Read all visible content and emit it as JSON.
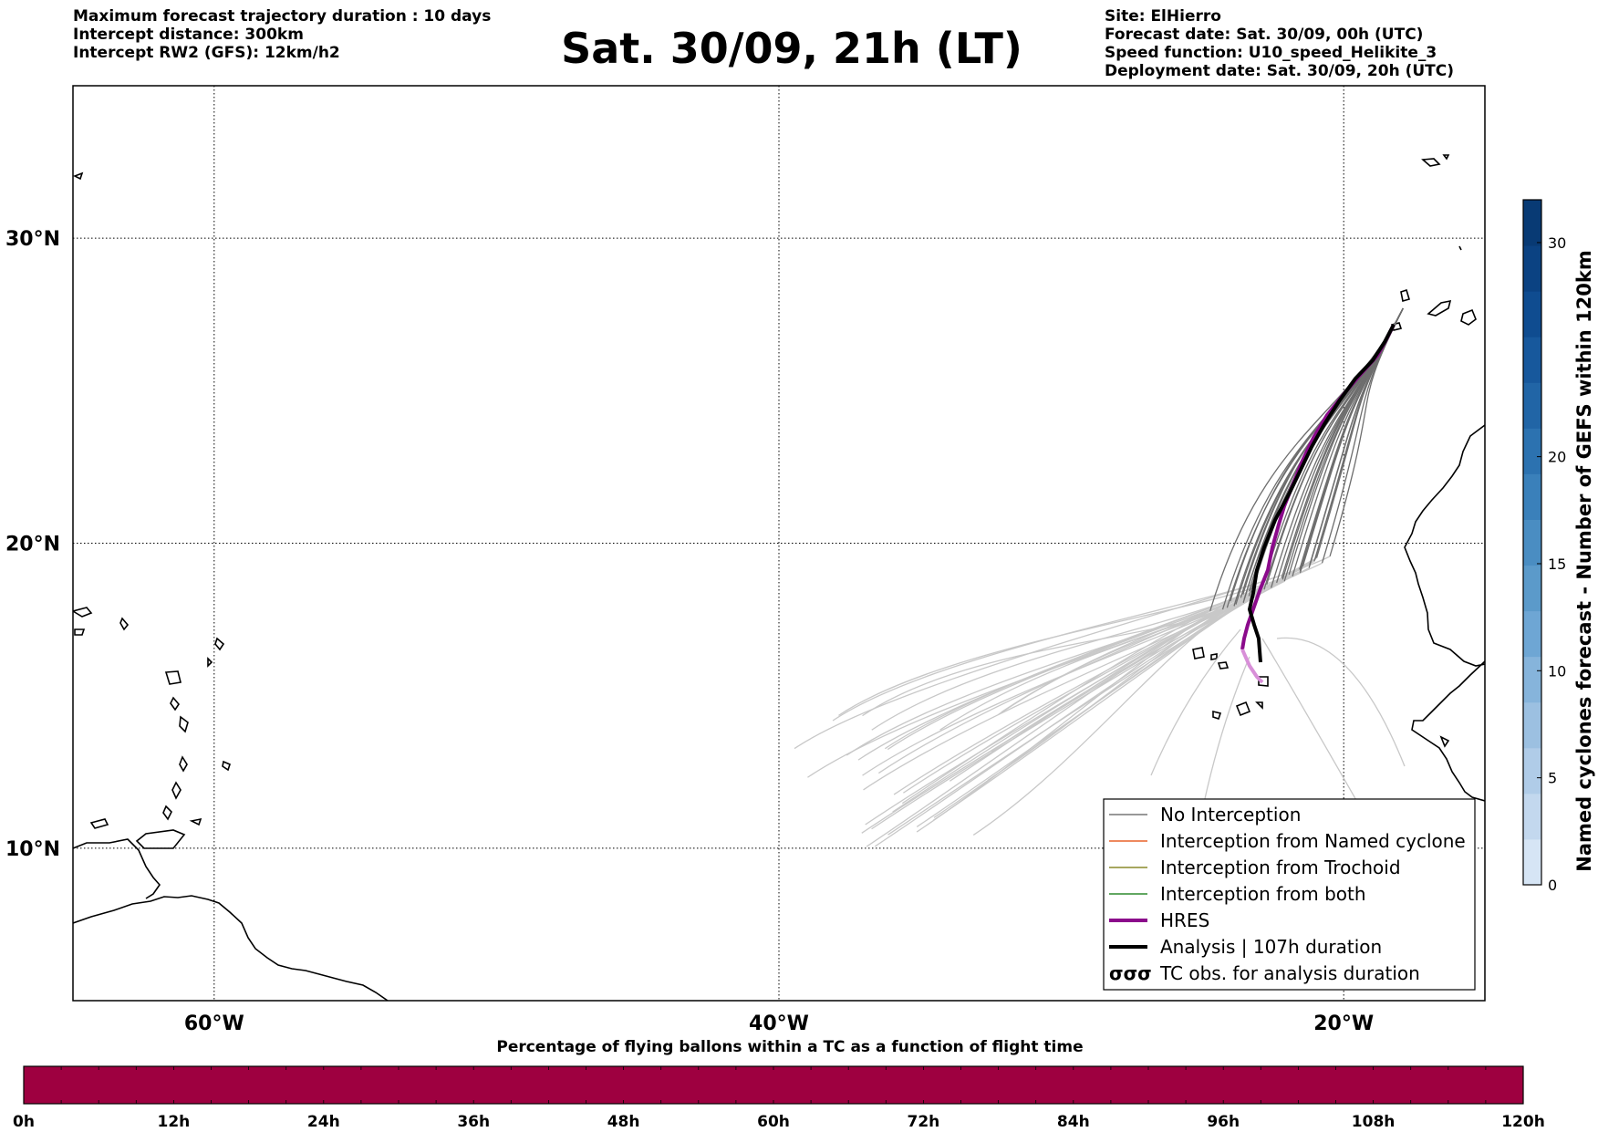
{
  "header": {
    "left_lines": [
      "Maximum forecast trajectory duration : 10 days",
      "Intercept distance: 300km",
      "Intercept RW2 (GFS):  12km/h2"
    ],
    "title": "Sat. 30/09, 21h (LT)",
    "right_lines": [
      "Site: ElHierro",
      "Forecast date: Sat. 30/09, 00h (UTC)",
      "Speed function: U10_speed_Helikite_3",
      "Deployment date: Sat. 30/09, 20h (UTC)"
    ]
  },
  "map": {
    "lon_range": [
      -65,
      -15
    ],
    "lat_range": [
      5,
      35
    ],
    "grid": true,
    "lon_ticks": [
      {
        "lon": -60,
        "label": "60°W"
      },
      {
        "lon": -40,
        "label": "40°W"
      },
      {
        "lon": -20,
        "label": "20°W"
      }
    ],
    "lat_ticks": [
      {
        "lat": 30,
        "label": "30°N"
      },
      {
        "lat": 20,
        "label": "20°N"
      },
      {
        "lat": 10,
        "label": "10°N"
      }
    ],
    "deployment_site": {
      "name": "ElHierro",
      "lon": -17.9,
      "lat": 27.7
    }
  },
  "legend": {
    "placement": "lower-right",
    "items": [
      {
        "label": "No Interception",
        "color": "#777777",
        "style": "thin"
      },
      {
        "label": "Interception from Named cyclone",
        "color": "#e8622a",
        "style": "thin"
      },
      {
        "label": "Interception from Trochoid",
        "color": "#8a8a2a",
        "style": "thin"
      },
      {
        "label": "Interception from both",
        "color": "#2f8a2f",
        "style": "thin"
      },
      {
        "label": "HRES",
        "color": "#8b0a8b",
        "style": "thick"
      },
      {
        "label": "Analysis | 107h duration",
        "color": "#000000",
        "style": "thick"
      },
      {
        "label": "TC obs. for analysis duration",
        "color": "#000000",
        "style": "symbol",
        "symbol": "σσσ"
      }
    ]
  },
  "colorbar": {
    "label": "Named cyclones forecast - Number of GEFS within 120km",
    "min": 0,
    "max": 32,
    "ticks": [
      0,
      5,
      10,
      15,
      20,
      30
    ],
    "colors": [
      "#d6e5f5",
      "#c3d8ee",
      "#b0cce8",
      "#9cc0e1",
      "#86b4db",
      "#6ea6d4",
      "#5b9aca",
      "#4a8dc2",
      "#3a80ba",
      "#2c72b0",
      "#2165a6",
      "#17589c",
      "#0f4c90",
      "#0b4282",
      "#083a74"
    ]
  },
  "flight_bar": {
    "title": "Percentage of flying ballons within a TC as a function of flight time",
    "color": "#9e0040",
    "tick_labels": [
      "0h",
      "12h",
      "24h",
      "36h",
      "48h",
      "60h",
      "72h",
      "84h",
      "96h",
      "108h",
      "120h"
    ]
  }
}
